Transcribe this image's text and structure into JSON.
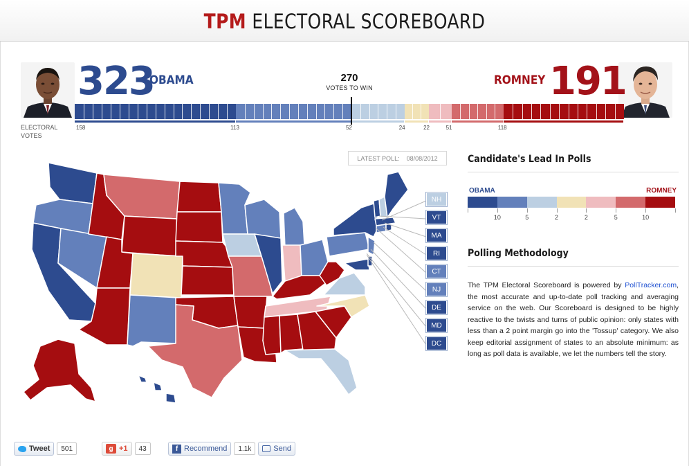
{
  "header": {
    "brand": "TPM",
    "title": "ELECTORAL SCOREBOARD"
  },
  "scoreboard": {
    "obama": {
      "votes": "323",
      "name": "OBAMA",
      "photo": "obama-photo"
    },
    "romney": {
      "votes": "191",
      "name": "ROMNEY",
      "photo": "romney-photo"
    },
    "to_win_number": "270",
    "to_win_label": "VOTES TO WIN",
    "axis_title_line1": "ELECTORAL",
    "axis_title_line2": "VOTES",
    "categories": [
      {
        "label": "158",
        "votes": 158,
        "color": "#2d4b8f"
      },
      {
        "label": "113",
        "votes": 113,
        "color": "#6380bb"
      },
      {
        "label": "52",
        "votes": 52,
        "color": "#bccfe2"
      },
      {
        "label": "24",
        "votes": 24,
        "color": "#f1e2b6"
      },
      {
        "label": "22",
        "votes": 22,
        "color": "#efbcbf"
      },
      {
        "label": "51",
        "votes": 51,
        "color": "#d36a6c"
      },
      {
        "label": "118",
        "votes": 118,
        "color": "#a50d10"
      }
    ]
  },
  "latest_poll": {
    "label": "LATEST POLL:",
    "date": "08/08/2012"
  },
  "small_states": [
    {
      "abbr": "NH",
      "color": "#bccfe2"
    },
    {
      "abbr": "VT",
      "color": "#2d4b8f"
    },
    {
      "abbr": "MA",
      "color": "#2d4b8f"
    },
    {
      "abbr": "RI",
      "color": "#2d4b8f"
    },
    {
      "abbr": "CT",
      "color": "#6380bb"
    },
    {
      "abbr": "NJ",
      "color": "#6380bb"
    },
    {
      "abbr": "DE",
      "color": "#2d4b8f"
    },
    {
      "abbr": "MD",
      "color": "#2d4b8f"
    },
    {
      "abbr": "DC",
      "color": "#2d4b8f"
    }
  ],
  "lead": {
    "heading": "Candidate's Lead In Polls",
    "left_label": "OBAMA",
    "right_label": "ROMNEY",
    "scale_colors": [
      "#2d4b8f",
      "#6380bb",
      "#bccfe2",
      "#f1e2b6",
      "#efbcbf",
      "#d36a6c",
      "#a50d10"
    ],
    "tick_labels": [
      "10",
      "5",
      "2",
      "2",
      "5",
      "10"
    ]
  },
  "method": {
    "heading": "Polling Methodology",
    "text_before": "The TPM Electoral Scoreboard is powered by ",
    "link": "PollTracker.com",
    "text_after": ", the most accurate and up-to-date poll tracking and averaging service on the web. Our Scoreboard is designed to be highly reactive to the twists and turns of public opinion: only states with less than a 2 point margin go into the 'Tossup' category. We also keep editorial assignment of states to an absolute minimum: as long as poll data is available, we let the numbers tell the story."
  },
  "social": {
    "tweet_label": "Tweet",
    "tweet_count": "501",
    "gplus_label": "+1",
    "gplus_count": "43",
    "fb_label": "Recommend",
    "fb_count": "1.1k",
    "send_label": "Send"
  }
}
